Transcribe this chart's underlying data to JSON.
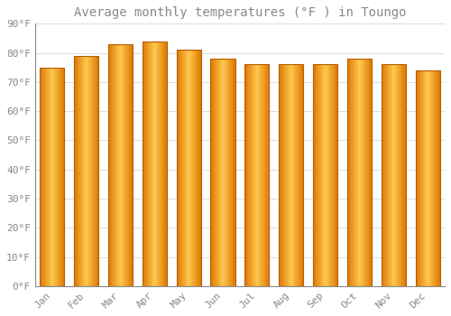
{
  "title": "Average monthly temperatures (°F ) in Toungo",
  "categories": [
    "Jan",
    "Feb",
    "Mar",
    "Apr",
    "May",
    "Jun",
    "Jul",
    "Aug",
    "Sep",
    "Oct",
    "Nov",
    "Dec"
  ],
  "values": [
    75,
    79,
    83,
    84,
    81,
    78,
    76,
    76,
    76,
    78,
    76,
    74
  ],
  "bar_color_center": "#FFD166",
  "bar_color_edge": "#E87F00",
  "bar_outline_color": "#B85C00",
  "background_color": "#FFFFFF",
  "grid_color": "#DDDDDD",
  "ylim": [
    0,
    90
  ],
  "yticks": [
    0,
    10,
    20,
    30,
    40,
    50,
    60,
    70,
    80,
    90
  ],
  "ytick_labels": [
    "0°F",
    "10°F",
    "20°F",
    "30°F",
    "40°F",
    "50°F",
    "60°F",
    "70°F",
    "80°F",
    "90°F"
  ],
  "title_fontsize": 10,
  "tick_fontsize": 8,
  "font_color": "#888888",
  "bar_width": 0.72
}
